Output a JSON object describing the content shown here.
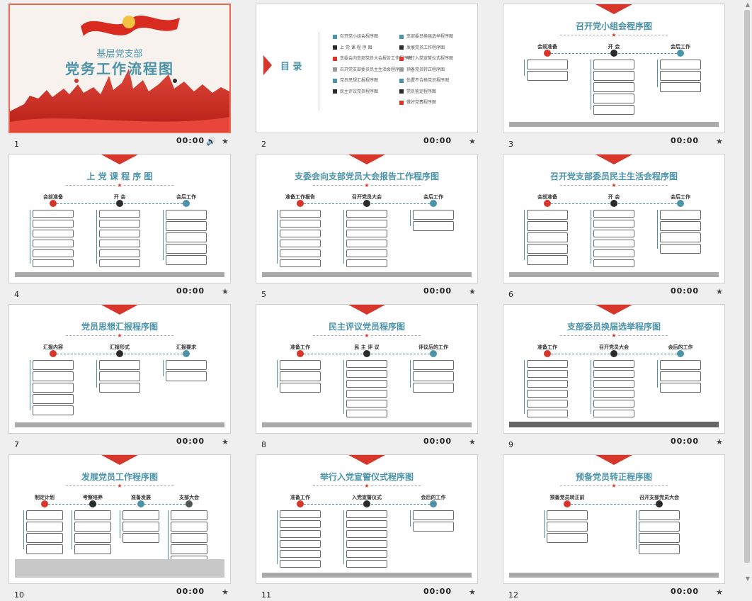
{
  "slides": [
    {
      "num": "1",
      "time": "00:00",
      "title": "党务工作流程图",
      "subtitle": "基层党支部",
      "selected": true,
      "has_audio": true
    },
    {
      "num": "2",
      "time": "00:00",
      "title": "目 录"
    },
    {
      "num": "3",
      "time": "00:00",
      "title": "召开党小组会程序图",
      "cols": [
        "会前准备",
        "开 会",
        "会后工作"
      ]
    },
    {
      "num": "4",
      "time": "00:00",
      "title": "上 党 课 程 序 图",
      "cols": [
        "会前准备",
        "开 会",
        "会后工作"
      ]
    },
    {
      "num": "5",
      "time": "00:00",
      "title": "支委会向支部党员大会报告工作程序图",
      "cols": [
        "准备工作报告",
        "召开党员大会",
        "会后工作"
      ]
    },
    {
      "num": "6",
      "time": "00:00",
      "title": "召开党支部委员民主生活会程序图",
      "cols": [
        "会前准备",
        "开 会",
        "会后工作"
      ]
    },
    {
      "num": "7",
      "time": "00:00",
      "title": "党员思想汇报程序图",
      "cols": [
        "汇报内容",
        "汇报形式",
        "汇报要求"
      ]
    },
    {
      "num": "8",
      "time": "00:00",
      "title": "民主评议党员程序图",
      "cols": [
        "准备工作",
        "民 主 评 议",
        "评议后的工作"
      ]
    },
    {
      "num": "9",
      "time": "00:00",
      "title": "支部委员换届选举程序图",
      "cols": [
        "准备工作",
        "召开党员大会",
        "会后的工作"
      ]
    },
    {
      "num": "10",
      "time": "00:00",
      "title": "发展党员工作程序图",
      "cols": [
        "制定计划",
        "考察培养",
        "准备发展",
        "支部大会"
      ]
    },
    {
      "num": "11",
      "time": "00:00",
      "title": "举行入党宣誓仪式程序图",
      "cols": [
        "准备工作",
        "入党宣誓仪式",
        "会后的工作"
      ]
    },
    {
      "num": "12",
      "time": "00:00",
      "title": "预备党员转正程序图",
      "cols": [
        "预备党员转正前",
        "召开支部党员大会"
      ]
    }
  ],
  "toc": {
    "left": [
      {
        "label": "召开党小组会程序图",
        "color": "#4a93a8"
      },
      {
        "label": "上 党 课 程 序 图",
        "color": "#2b2b2b"
      },
      {
        "label": "支委会向支部党员大会报告工作程序图",
        "color": "#d6372a"
      },
      {
        "label": "召开党支部委员民主生活会程序图",
        "color": "#999999"
      },
      {
        "label": "党员思想汇报程序图",
        "color": "#4a93a8"
      },
      {
        "label": "民主评议党员程序图",
        "color": "#2b2b2b"
      }
    ],
    "right": [
      {
        "label": "支部委员换届选举程序图",
        "color": "#4a93a8"
      },
      {
        "label": "发展党员工作程序图",
        "color": "#2b2b2b"
      },
      {
        "label": "举行入党宣誓仪式程序图",
        "color": "#d6372a"
      },
      {
        "label": "预备党员转正程序图",
        "color": "#999999"
      },
      {
        "label": "处置不合格党员程序图",
        "color": "#4a93a8"
      },
      {
        "label": "党员鉴定程序图",
        "color": "#2b2b2b"
      },
      {
        "label": "做好党费程序图",
        "color": "#d6372a"
      }
    ]
  },
  "colors": {
    "accent": "#d6372a",
    "teal": "#4a93a8",
    "dark": "#2b2b2b",
    "gray": "#999999"
  },
  "icons": {
    "speaker": "speaker-icon",
    "star": "star-icon"
  }
}
